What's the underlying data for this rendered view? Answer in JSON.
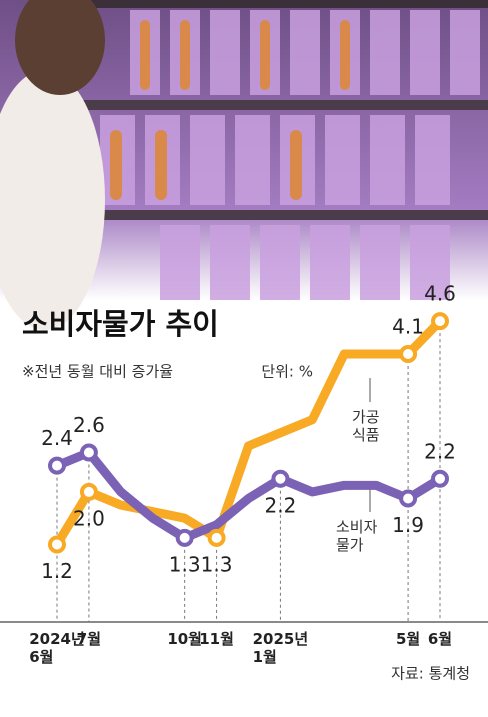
{
  "chart_data": {
    "type": "line",
    "title": "소비자물가 추이",
    "subtitle": "※전년 동월 대비 증가율",
    "unit": "단위: %",
    "source": "자료: 통계청",
    "categories": [
      "2024년\n6월",
      "7월",
      null,
      null,
      "10월",
      "11월",
      null,
      "2025년\n1월",
      null,
      null,
      null,
      "5월",
      "6월"
    ],
    "ylim": [
      0.4,
      4.8
    ],
    "series": [
      {
        "name": "가공\n식품",
        "color": "#f8aa24",
        "values": [
          1.2,
          2.0,
          1.8,
          1.7,
          1.6,
          1.3,
          2.7,
          2.9,
          3.1,
          4.1,
          4.1,
          4.1,
          4.6
        ],
        "value_labels": [
          "1.2",
          "2.0",
          null,
          null,
          null,
          "1.3",
          null,
          null,
          null,
          null,
          null,
          "4.1",
          "4.6"
        ]
      },
      {
        "name": "소비자\n물가",
        "color": "#7b62b5",
        "values": [
          2.4,
          2.6,
          2.0,
          1.6,
          1.3,
          1.5,
          1.9,
          2.2,
          2.0,
          2.1,
          2.1,
          1.9,
          2.2
        ],
        "value_labels": [
          "2.4",
          "2.6",
          null,
          null,
          "1.3",
          null,
          null,
          "2.2",
          null,
          null,
          null,
          "1.9",
          "2.2"
        ]
      }
    ]
  }
}
